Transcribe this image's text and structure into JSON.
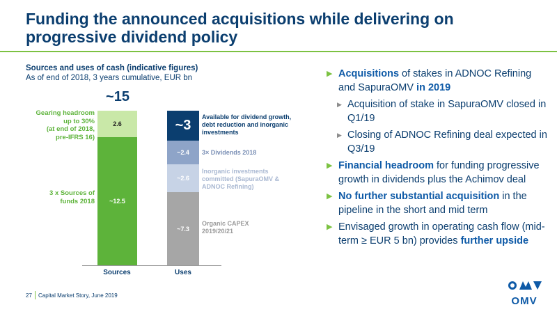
{
  "title": "Funding the announced acquisitions while delivering on progressive dividend policy",
  "chart_section": {
    "title": "Sources and uses of cash (indicative figures)",
    "subtitle": "As of end of 2018, 3 years cumulative, EUR bn",
    "total_label": "~15"
  },
  "chart_data": {
    "type": "bar",
    "stacked": true,
    "categories": [
      "Sources",
      "Uses"
    ],
    "unit": "EUR bn",
    "stacks": [
      {
        "category": "Sources",
        "segments": [
          {
            "name": "3 x Sources of funds 2018",
            "value": 12.5,
            "label": "~12.5",
            "color": "#5db33a"
          },
          {
            "name": "Gearing headroom up to 30% (at end of 2018, pre-IFRS 16)",
            "value": 2.6,
            "label": "2.6",
            "color": "#c9e8a8"
          }
        ]
      },
      {
        "category": "Uses",
        "segments": [
          {
            "name": "Organic CAPEX 2019/20/21",
            "value": 7.3,
            "label": "~7.3",
            "color": "#a6a6a6"
          },
          {
            "name": "Inorganic investments committed (SapuraOMV & ADNOC Refining)",
            "value": 2.6,
            "label": "~2.6",
            "color": "#c7d3e6"
          },
          {
            "name": "3× Dividends 2018",
            "value": 2.4,
            "label": "~2.4",
            "color": "#8ea4c8"
          },
          {
            "name": "Available for dividend growth, debt reduction and inorganic investments",
            "value": 3,
            "label": "~3",
            "color": "#0b3e6f"
          }
        ]
      }
    ],
    "total": 15,
    "total_label": "~15"
  },
  "left_labels": {
    "gearing": [
      "Gearing headroom",
      "up to 30%",
      "(at end of 2018,",
      "pre-IFRS 16)"
    ],
    "sources": [
      "3 x Sources of",
      "funds 2018"
    ]
  },
  "right_labels": {
    "available": [
      "Available for dividend growth,",
      "debt reduction and inorganic",
      "investments"
    ],
    "dividends": [
      "3× Dividends 2018"
    ],
    "inorganic": [
      "Inorganic investments",
      "committed (SapuraOMV &",
      "ADNOC Refining)"
    ],
    "capex": [
      "Organic CAPEX",
      "2019/20/21"
    ]
  },
  "bar_values": {
    "gearing": "2.6",
    "sources": "~12.5",
    "available": "~3",
    "dividends": "~2.4",
    "inorganic": "~2.6",
    "capex": "~7.3"
  },
  "axis": {
    "sources": "Sources",
    "uses": "Uses"
  },
  "bullets": {
    "b1": {
      "hl1": "Acquisitions",
      "t1": " of stakes in ADNOC Refining and SapuraOMV ",
      "hl2": "in 2019"
    },
    "b1a": "Acquisition of stake in SapuraOMV closed in Q1/19",
    "b1b": "Closing of ADNOC Refining deal expected in Q3/19",
    "b2": {
      "hl1": "Financial headroom",
      "t1": " for funding progressive growth in dividends plus the Achimov deal"
    },
    "b3": {
      "hl1": "No further substantial acquisition",
      "t1": " in the pipeline in the short and mid term"
    },
    "b4": {
      "t1": "Envisaged growth in operating cash flow (mid-term ≥ EUR 5 bn) provides ",
      "hl1": "further upside"
    }
  },
  "footer": {
    "page": "27",
    "text": "Capital Market Story, June 2019"
  },
  "logo": {
    "text": "OMV"
  }
}
